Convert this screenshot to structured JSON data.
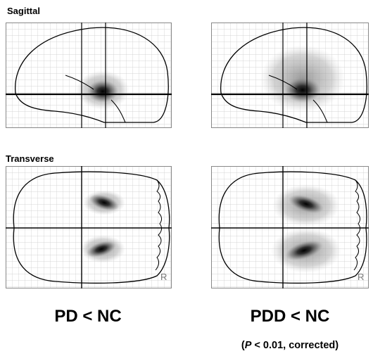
{
  "figure": {
    "row_labels": {
      "sagittal": "Sagittal",
      "transverse": "Transverse"
    },
    "orientation_marker": "R",
    "captions": {
      "left": "PD < NC",
      "right": "PDD < NC"
    },
    "significance_note_prefix": "P",
    "significance_note_suffix": " < 0.01, corrected)",
    "significance_note_open": "("
  }
}
